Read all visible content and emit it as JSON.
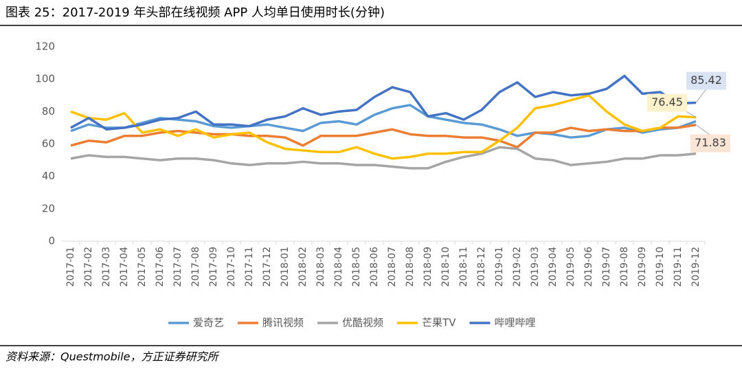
{
  "chart_data": {
    "type": "line",
    "title": "图表 25：2017-2019 年头部在线视频 APP 人均单日使用时长(分钟)",
    "source": "资料来源：Questmobile，方正证券研究所",
    "categories": [
      "2017-01",
      "2017-02",
      "2017-03",
      "2017-04",
      "2017-05",
      "2017-06",
      "2017-07",
      "2017-08",
      "2017-09",
      "2017-10",
      "2017-11",
      "2017-12",
      "2018-01",
      "2018-02",
      "2018-03",
      "2018-04",
      "2018-05",
      "2018-06",
      "2018-07",
      "2018-08",
      "2018-09",
      "2018-10",
      "2018-11",
      "2018-12",
      "2019-01",
      "2019-02",
      "2019-03",
      "2019-04",
      "2019-05",
      "2019-06",
      "2019-07",
      "2019-08",
      "2019-09",
      "2019-10",
      "2019-11",
      "2019-12"
    ],
    "series": [
      {
        "name": "爱奇艺",
        "color": "#5b9bd5",
        "values": [
          68,
          72,
          70,
          70,
          73,
          76,
          75,
          74,
          71,
          70,
          71,
          72,
          70,
          68,
          73,
          74,
          72,
          78,
          82,
          84,
          77,
          75,
          73,
          72,
          69,
          65,
          67,
          66,
          64,
          65,
          69,
          70,
          67,
          69,
          70,
          74
        ]
      },
      {
        "name": "腾讯视频",
        "color": "#ed7d31",
        "values": [
          59,
          62,
          61,
          65,
          65,
          67,
          68,
          67,
          66,
          66,
          65,
          65,
          64,
          59,
          65,
          65,
          65,
          67,
          69,
          66,
          65,
          65,
          64,
          64,
          62,
          58,
          67,
          67,
          70,
          68,
          69,
          68,
          68,
          70,
          70,
          71.83
        ]
      },
      {
        "name": "优酷视频",
        "color": "#a5a5a5",
        "values": [
          51,
          53,
          52,
          52,
          51,
          50,
          51,
          51,
          50,
          48,
          47,
          48,
          48,
          49,
          48,
          48,
          47,
          47,
          46,
          45,
          45,
          49,
          52,
          54,
          58,
          57,
          51,
          50,
          47,
          48,
          49,
          51,
          51,
          53,
          53,
          54
        ]
      },
      {
        "name": "芒果TV",
        "color": "#ffc000",
        "values": [
          80,
          76,
          75,
          79,
          67,
          69,
          65,
          69,
          64,
          66,
          67,
          61,
          57,
          56,
          55,
          55,
          58,
          54,
          51,
          52,
          54,
          54,
          55,
          55,
          62,
          70,
          82,
          84,
          87,
          90,
          80,
          72,
          68,
          70,
          77,
          76.45
        ]
      },
      {
        "name": "哔哩哔哩",
        "color": "#4472c4",
        "values": [
          70,
          76,
          69,
          70,
          72,
          75,
          76,
          80,
          72,
          72,
          71,
          75,
          77,
          82,
          78,
          80,
          81,
          89,
          95,
          92,
          77,
          79,
          75,
          81,
          92,
          98,
          89,
          92,
          90,
          91,
          94,
          102,
          91,
          92,
          85,
          85.42
        ]
      }
    ],
    "ylim": [
      0,
      120
    ],
    "yticks": [
      0,
      20,
      40,
      60,
      80,
      100,
      120
    ],
    "legend": "bottom"
  }
}
